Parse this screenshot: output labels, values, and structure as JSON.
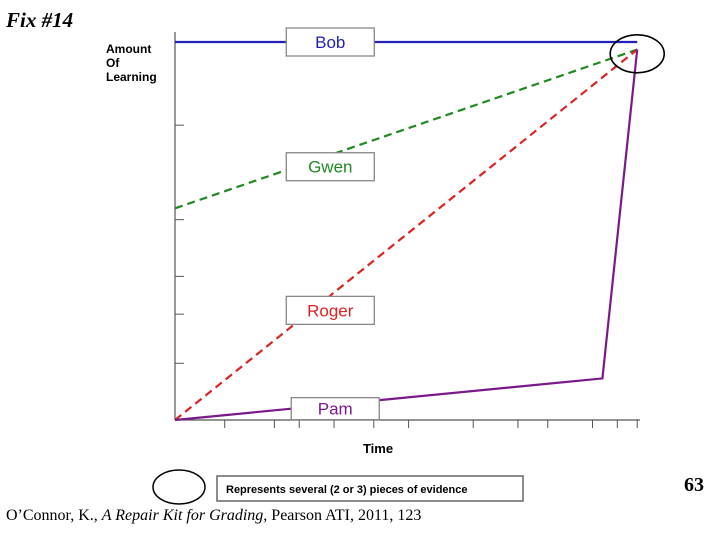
{
  "slide": {
    "title": "Fix #14",
    "page_number": "63",
    "citation": {
      "author": "O’Connor, K., ",
      "book": "A Repair Kit for Grading,",
      "rest": " Pearson ATI, 2011, 123"
    }
  },
  "legend": {
    "note": "Represents several (2 or 3) pieces of evidence"
  },
  "chart_data": {
    "type": "line",
    "title": "",
    "xlabel": "Time",
    "ylabel": "Amount Of Learning",
    "ylabel_lines": [
      "Amount",
      "Of",
      "Learning"
    ],
    "xlim": [
      0,
      100
    ],
    "ylim": [
      0,
      100
    ],
    "grid": false,
    "x_ticks": [
      10,
      20,
      25,
      32,
      40,
      47,
      60,
      69,
      75,
      84,
      89,
      93
    ],
    "y_ticks": [
      15,
      28,
      38,
      53,
      78,
      100
    ],
    "series": [
      {
        "name": "Bob",
        "color": "#2222bb",
        "dash": "solid",
        "x": [
          0,
          93
        ],
        "y": [
          100,
          100
        ]
      },
      {
        "name": "Gwen",
        "color": "#228822",
        "dash": "dash",
        "x": [
          0,
          93
        ],
        "y": [
          56,
          98
        ]
      },
      {
        "name": "Roger",
        "color": "#dd2222",
        "dash": "dash",
        "x": [
          0,
          93
        ],
        "y": [
          0,
          98
        ]
      },
      {
        "name": "Pam",
        "color": "#7a1a8a",
        "dash": "solid",
        "x": [
          0,
          86,
          93
        ],
        "y": [
          0,
          11,
          98
        ]
      }
    ],
    "series_label_pos": [
      {
        "name": "Bob",
        "x": 24,
        "y": 100
      },
      {
        "name": "Gwen",
        "x": 24,
        "y": 67
      },
      {
        "name": "Roger",
        "x": 24,
        "y": 29
      },
      {
        "name": "Pam",
        "x": 25,
        "y": 3
      }
    ],
    "annotations": [
      {
        "type": "circle",
        "x": 93,
        "y": 99,
        "meaning": "several pieces of evidence"
      }
    ]
  }
}
